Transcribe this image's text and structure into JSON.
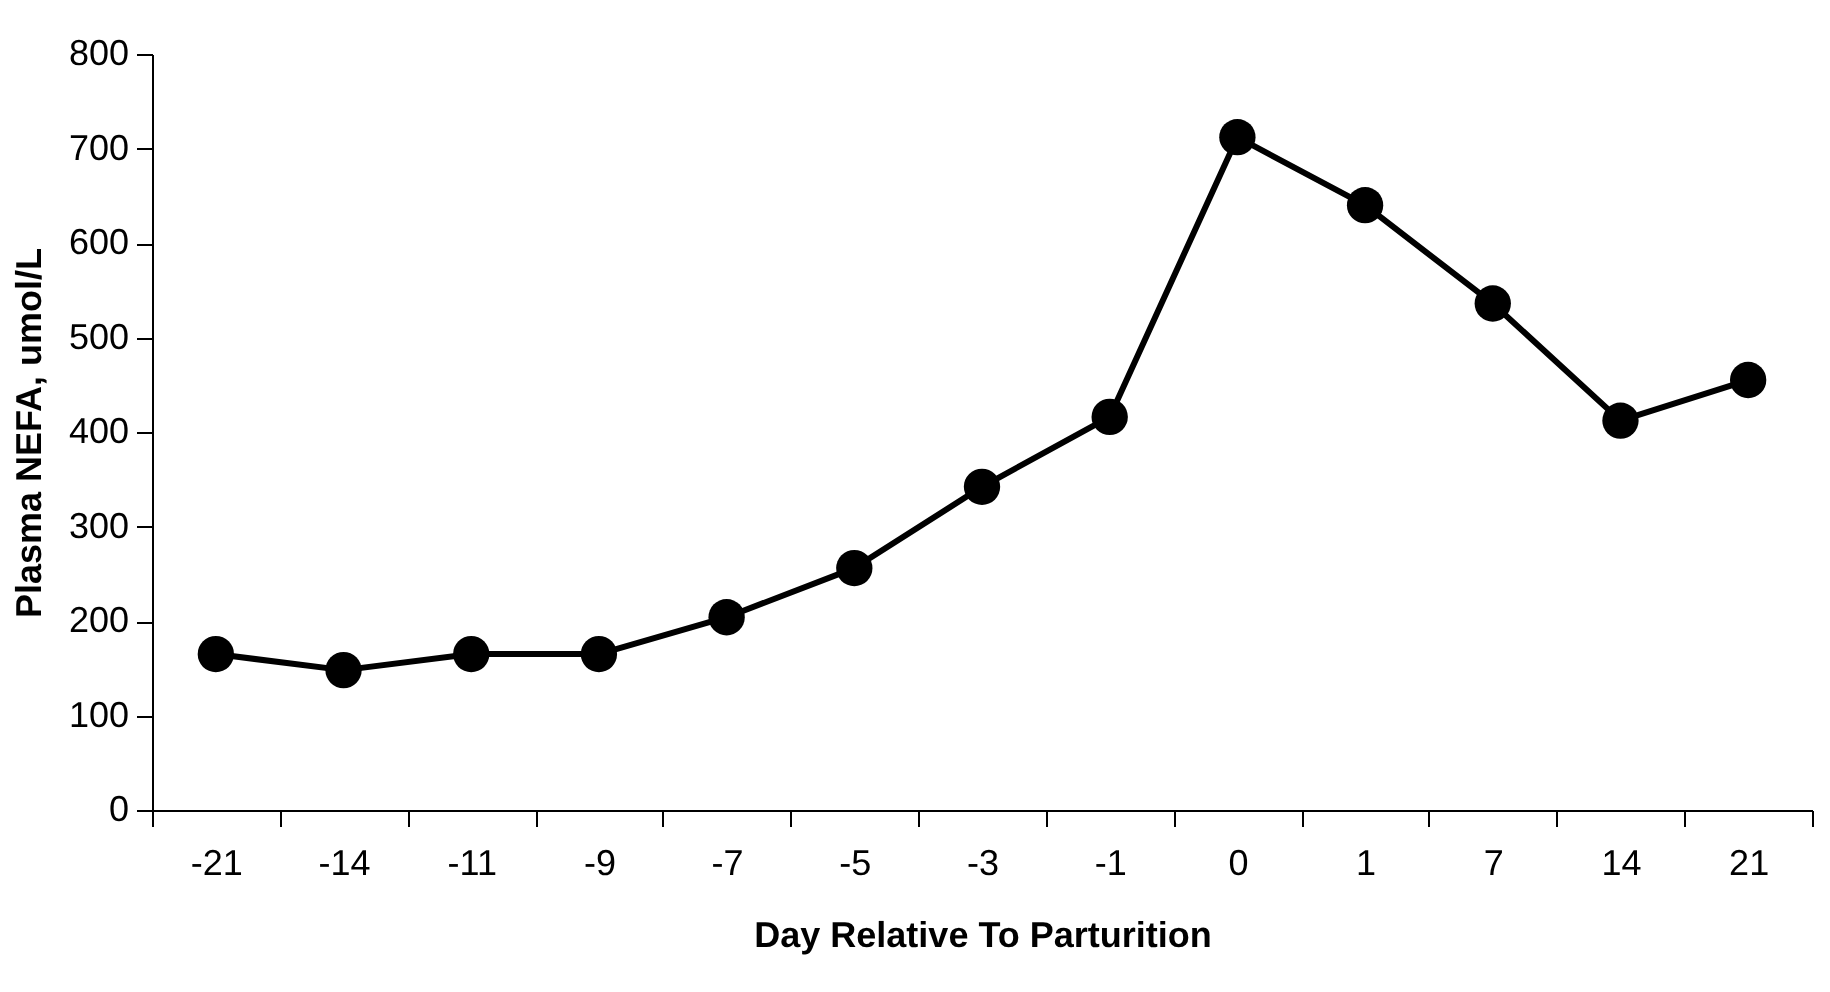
{
  "chart_data": {
    "type": "line",
    "xlabel": "Day Relative To Parturition",
    "ylabel": "Plasma NEFA, umol/L",
    "categories": [
      "-21",
      "-14",
      "-11",
      "-9",
      "-7",
      "-5",
      "-3",
      "-1",
      "0",
      "1",
      "7",
      "14",
      "21"
    ],
    "series": [
      {
        "color": "#000000",
        "values": [
          165,
          148,
          165,
          165,
          204,
          256,
          342,
          416,
          712,
          640,
          536,
          412,
          455
        ]
      }
    ],
    "ylim": [
      0,
      800
    ],
    "yticks": [
      0,
      100,
      200,
      300,
      400,
      500,
      600,
      700,
      800
    ],
    "grid": false,
    "legend": false,
    "marker": "circle",
    "line_style": "solid"
  }
}
